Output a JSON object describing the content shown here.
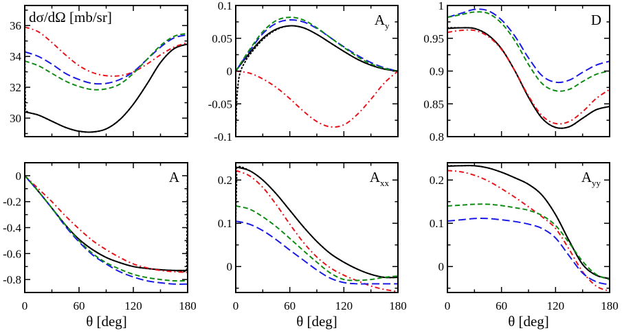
{
  "figure": {
    "x_axis_title": "θ  [deg]",
    "line_styles": {
      "solid_black": {
        "color": "#000000",
        "dash": "",
        "width": 2
      },
      "dotted_black": {
        "color": "#000000",
        "dash": "1.5,3.5",
        "width": 2
      },
      "dashdot_red": {
        "color": "#e8141a",
        "dash": "7,4,2,4",
        "width": 2
      },
      "longdash_blue": {
        "color": "#1a1ae6",
        "dash": "11,5",
        "width": 2
      },
      "shortdash_green": {
        "color": "#0f8a12",
        "dash": "7,4",
        "width": 2
      }
    }
  },
  "chart_data": [
    {
      "type": "line",
      "title": "dσ/dΩ  [mb/sr]",
      "label_main": "dσ/dΩ  [mb/sr]",
      "label_sub": "",
      "label_pos": "top-left",
      "xlabel": "",
      "ylabel": "dσ/dΩ [mb/sr]",
      "xlim": [
        0,
        180
      ],
      "ylim": [
        28.8,
        37.3
      ],
      "xticks": [
        0,
        60,
        120,
        180
      ],
      "xminor": [
        30,
        90,
        150
      ],
      "show_xtick_labels": false,
      "yticks": [
        30,
        32,
        34,
        36
      ],
      "ytick_labels": [
        "30",
        "32",
        "34",
        "36"
      ],
      "yminor": [
        29,
        31,
        33,
        35,
        37
      ],
      "x": [
        0,
        15,
        30,
        45,
        60,
        75,
        90,
        105,
        120,
        135,
        150,
        165,
        180
      ],
      "series": [
        {
          "name": "solid",
          "style": "solid_black",
          "values": [
            30.4,
            30.2,
            29.8,
            29.4,
            29.15,
            29.1,
            29.3,
            29.9,
            30.9,
            32.2,
            33.6,
            34.5,
            34.8
          ]
        },
        {
          "name": "dotted",
          "style": "dotted_black",
          "x": [
            0,
            0.3,
            0.8,
            2,
            15,
            30,
            45,
            60,
            75,
            90,
            105,
            120,
            135,
            150,
            165,
            180
          ],
          "values": [
            37.3,
            33,
            31,
            30.45,
            30.2,
            29.8,
            29.4,
            29.15,
            29.1,
            29.3,
            29.9,
            30.9,
            32.2,
            33.6,
            34.5,
            34.8
          ]
        },
        {
          "name": "dash-dot",
          "style": "dashdot_red",
          "values": [
            35.9,
            35.6,
            34.9,
            34.1,
            33.4,
            32.95,
            32.75,
            32.75,
            33.0,
            33.5,
            34.1,
            34.6,
            34.9
          ]
        },
        {
          "name": "long-dash",
          "style": "longdash_blue",
          "values": [
            34.3,
            34.0,
            33.5,
            32.9,
            32.5,
            32.25,
            32.25,
            32.5,
            33.0,
            33.8,
            34.6,
            35.2,
            35.4
          ]
        },
        {
          "name": "short-dash",
          "style": "shortdash_green",
          "values": [
            33.7,
            33.4,
            32.9,
            32.4,
            32.05,
            31.85,
            31.9,
            32.2,
            32.9,
            33.8,
            34.7,
            35.3,
            35.5
          ]
        }
      ]
    },
    {
      "type": "line",
      "title": "A_y",
      "label_main": "A",
      "label_sub": "y",
      "label_pos": "top-right",
      "xlabel": "",
      "ylabel": "A_y",
      "xlim": [
        0,
        180
      ],
      "ylim": [
        -0.1,
        0.1
      ],
      "xticks": [
        0,
        60,
        120,
        180
      ],
      "xminor": [
        30,
        90,
        150
      ],
      "show_xtick_labels": false,
      "yticks": [
        -0.1,
        -0.05,
        0,
        0.05,
        0.1
      ],
      "ytick_labels": [
        "-0.1",
        "-0.05",
        "0",
        "0.05",
        "0.1"
      ],
      "yminor": [
        -0.075,
        -0.025,
        0.025,
        0.075
      ],
      "x": [
        0,
        15,
        30,
        45,
        60,
        75,
        90,
        105,
        120,
        135,
        150,
        165,
        180
      ],
      "series": [
        {
          "name": "solid",
          "style": "solid_black",
          "values": [
            0,
            0.027,
            0.05,
            0.064,
            0.069,
            0.066,
            0.056,
            0.043,
            0.03,
            0.018,
            0.009,
            0.003,
            0
          ]
        },
        {
          "name": "dotted",
          "style": "dotted_black",
          "x": [
            0,
            1,
            3,
            6,
            10,
            15,
            30,
            45,
            60,
            75,
            90,
            105,
            120,
            135,
            150,
            165,
            180
          ],
          "values": [
            -0.1,
            -0.05,
            -0.015,
            0.002,
            0.013,
            0.024,
            0.048,
            0.063,
            0.069,
            0.066,
            0.056,
            0.043,
            0.03,
            0.018,
            0.009,
            0.003,
            0
          ]
        },
        {
          "name": "dash-dot",
          "style": "dashdot_red",
          "values": [
            0,
            -0.003,
            -0.012,
            -0.025,
            -0.042,
            -0.061,
            -0.077,
            -0.085,
            -0.082,
            -0.066,
            -0.043,
            -0.018,
            0
          ]
        },
        {
          "name": "long-dash",
          "style": "longdash_blue",
          "values": [
            0,
            0.03,
            0.057,
            0.073,
            0.078,
            0.075,
            0.065,
            0.051,
            0.037,
            0.024,
            0.013,
            0.005,
            0
          ]
        },
        {
          "name": "short-dash",
          "style": "shortdash_green",
          "values": [
            0,
            0.032,
            0.06,
            0.077,
            0.082,
            0.078,
            0.066,
            0.051,
            0.036,
            0.022,
            0.011,
            0.004,
            0
          ]
        }
      ]
    },
    {
      "type": "line",
      "title": "D",
      "label_main": "D",
      "label_sub": "",
      "label_pos": "top-right",
      "xlabel": "",
      "ylabel": "D",
      "xlim": [
        0,
        180
      ],
      "ylim": [
        0.8,
        1.0
      ],
      "xticks": [
        0,
        60,
        120,
        180
      ],
      "xminor": [
        30,
        90,
        150
      ],
      "show_xtick_labels": false,
      "yticks": [
        0.8,
        0.85,
        0.9,
        0.95,
        1.0
      ],
      "ytick_labels": [
        "0.8",
        "0.85",
        "0.9",
        "0.95",
        "1"
      ],
      "yminor": [
        0.825,
        0.875,
        0.925,
        0.975
      ],
      "x": [
        0,
        15,
        30,
        45,
        60,
        75,
        90,
        105,
        120,
        135,
        150,
        165,
        180
      ],
      "series": [
        {
          "name": "solid",
          "style": "solid_black",
          "values": [
            0.965,
            0.966,
            0.965,
            0.955,
            0.934,
            0.9,
            0.86,
            0.828,
            0.814,
            0.815,
            0.828,
            0.841,
            0.846
          ]
        },
        {
          "name": "dotted",
          "style": "dotted_black",
          "values": [
            0.966,
            0.966,
            0.965,
            0.955,
            0.934,
            0.9,
            0.86,
            0.828,
            0.814,
            0.815,
            0.828,
            0.841,
            0.846
          ]
        },
        {
          "name": "dash-dot",
          "style": "dashdot_red",
          "values": [
            0.959,
            0.962,
            0.962,
            0.953,
            0.933,
            0.9,
            0.862,
            0.832,
            0.82,
            0.823,
            0.838,
            0.858,
            0.872
          ]
        },
        {
          "name": "long-dash",
          "style": "longdash_blue",
          "values": [
            0.982,
            0.988,
            0.994,
            0.992,
            0.978,
            0.953,
            0.92,
            0.893,
            0.883,
            0.886,
            0.898,
            0.909,
            0.915
          ]
        },
        {
          "name": "short-dash",
          "style": "shortdash_green",
          "values": [
            0.982,
            0.986,
            0.99,
            0.988,
            0.973,
            0.946,
            0.91,
            0.881,
            0.87,
            0.872,
            0.884,
            0.895,
            0.9
          ]
        }
      ]
    },
    {
      "type": "line",
      "title": "A",
      "label_main": "A",
      "label_sub": "",
      "label_pos": "top-right",
      "xlabel": "θ  [deg]",
      "ylabel": "A",
      "xlim": [
        0,
        180
      ],
      "ylim": [
        -0.9,
        0.1
      ],
      "xticks": [
        0,
        60,
        120,
        180
      ],
      "xtick_labels": [
        "0",
        "60",
        "120",
        "180"
      ],
      "xminor": [
        30,
        90,
        150
      ],
      "show_xtick_labels": true,
      "yticks": [
        -0.8,
        -0.6,
        -0.4,
        -0.2,
        0
      ],
      "ytick_labels": [
        "-0.8",
        "-0.6",
        "-0.4",
        "-0.2",
        "0"
      ],
      "yminor": [
        -0.9,
        -0.7,
        -0.5,
        -0.3,
        -0.1,
        0.1
      ],
      "x": [
        0,
        15,
        30,
        45,
        60,
        75,
        90,
        105,
        120,
        135,
        150,
        165,
        180
      ],
      "series": [
        {
          "name": "solid",
          "style": "solid_black",
          "values": [
            0,
            -0.12,
            -0.25,
            -0.38,
            -0.49,
            -0.57,
            -0.63,
            -0.67,
            -0.7,
            -0.715,
            -0.725,
            -0.73,
            -0.73
          ]
        },
        {
          "name": "dotted",
          "style": "dotted_black",
          "x": [
            0,
            15,
            30,
            45,
            60,
            75,
            90,
            105,
            120,
            135,
            150,
            165,
            178,
            179,
            180
          ],
          "values": [
            0,
            -0.12,
            -0.25,
            -0.38,
            -0.49,
            -0.57,
            -0.63,
            -0.67,
            -0.7,
            -0.715,
            -0.725,
            -0.73,
            -0.73,
            -0.6,
            0.1
          ]
        },
        {
          "name": "dash-dot",
          "style": "dashdot_red",
          "values": [
            0,
            -0.1,
            -0.2,
            -0.31,
            -0.41,
            -0.5,
            -0.57,
            -0.63,
            -0.68,
            -0.71,
            -0.73,
            -0.74,
            -0.745
          ]
        },
        {
          "name": "long-dash",
          "style": "longdash_blue",
          "values": [
            0,
            -0.12,
            -0.25,
            -0.39,
            -0.51,
            -0.61,
            -0.68,
            -0.74,
            -0.78,
            -0.81,
            -0.825,
            -0.835,
            -0.835
          ]
        },
        {
          "name": "short-dash",
          "style": "shortdash_green",
          "values": [
            0,
            -0.12,
            -0.25,
            -0.38,
            -0.5,
            -0.6,
            -0.67,
            -0.72,
            -0.76,
            -0.785,
            -0.8,
            -0.81,
            -0.81
          ]
        }
      ]
    },
    {
      "type": "line",
      "title": "A_xx",
      "label_main": "A",
      "label_sub": "xx",
      "label_pos": "top-right",
      "xlabel": "θ  [deg]",
      "ylabel": "A_xx",
      "xlim": [
        0,
        180
      ],
      "ylim": [
        -0.06,
        0.24
      ],
      "xticks": [
        0,
        60,
        120,
        180
      ],
      "xtick_labels": [
        "0",
        "60",
        "120",
        "180"
      ],
      "xminor": [
        30,
        90,
        150
      ],
      "show_xtick_labels": true,
      "yticks": [
        0,
        0.1,
        0.2
      ],
      "ytick_labels": [
        "0",
        "0.1",
        "0.2"
      ],
      "yminor": [
        -0.05,
        0.05,
        0.15
      ],
      "x": [
        0,
        15,
        30,
        45,
        60,
        75,
        90,
        105,
        120,
        135,
        150,
        165,
        180
      ],
      "series": [
        {
          "name": "solid",
          "style": "solid_black",
          "values": [
            0.23,
            0.222,
            0.2,
            0.168,
            0.13,
            0.092,
            0.058,
            0.03,
            0.01,
            -0.006,
            -0.018,
            -0.025,
            -0.025
          ]
        },
        {
          "name": "dotted",
          "style": "dotted_black",
          "x": [
            0,
            1,
            2,
            15,
            30,
            45,
            60,
            75,
            90,
            105,
            120,
            135,
            150,
            165,
            180
          ],
          "values": [
            0.1,
            0.2,
            0.23,
            0.222,
            0.2,
            0.168,
            0.13,
            0.092,
            0.058,
            0.03,
            0.01,
            -0.006,
            -0.018,
            -0.025,
            -0.025
          ]
        },
        {
          "name": "dash-dot",
          "style": "dashdot_red",
          "values": [
            0.222,
            0.21,
            0.183,
            0.143,
            0.098,
            0.056,
            0.022,
            -0.003,
            -0.02,
            -0.033,
            -0.045,
            -0.053,
            -0.058
          ]
        },
        {
          "name": "long-dash",
          "style": "longdash_blue",
          "values": [
            0.105,
            0.098,
            0.083,
            0.062,
            0.038,
            0.015,
            -0.008,
            -0.027,
            -0.037,
            -0.04,
            -0.04,
            -0.04,
            -0.04
          ]
        },
        {
          "name": "short-dash",
          "style": "shortdash_green",
          "values": [
            0.14,
            0.133,
            0.115,
            0.092,
            0.065,
            0.037,
            0.01,
            -0.015,
            -0.03,
            -0.032,
            -0.03,
            -0.025,
            -0.022
          ]
        }
      ]
    },
    {
      "type": "line",
      "title": "A_yy",
      "label_main": "A",
      "label_sub": "yy",
      "label_pos": "top-right",
      "xlabel": "θ  [deg]",
      "ylabel": "A_yy",
      "xlim": [
        0,
        180
      ],
      "ylim": [
        -0.06,
        0.24
      ],
      "xticks": [
        0,
        60,
        120,
        180
      ],
      "xtick_labels": [
        "0",
        "60",
        "120",
        "180"
      ],
      "xminor": [
        30,
        90,
        150
      ],
      "show_xtick_labels": true,
      "yticks": [
        0,
        0.1,
        0.2
      ],
      "ytick_labels": [
        "0",
        "0.1",
        "0.2"
      ],
      "yminor": [
        -0.05,
        0.05,
        0.15
      ],
      "x": [
        0,
        15,
        30,
        45,
        60,
        75,
        90,
        105,
        120,
        135,
        150,
        165,
        180
      ],
      "series": [
        {
          "name": "solid",
          "style": "solid_black",
          "values": [
            0.232,
            0.233,
            0.233,
            0.228,
            0.218,
            0.205,
            0.19,
            0.165,
            0.12,
            0.06,
            0.005,
            -0.02,
            -0.028
          ]
        },
        {
          "name": "dotted",
          "style": "dotted_black",
          "values": [
            0.233,
            0.233,
            0.233,
            0.228,
            0.218,
            0.205,
            0.19,
            0.165,
            0.12,
            0.06,
            0.005,
            -0.02,
            -0.028
          ]
        },
        {
          "name": "dash-dot",
          "style": "dashdot_red",
          "values": [
            0.222,
            0.219,
            0.211,
            0.198,
            0.18,
            0.16,
            0.138,
            0.115,
            0.088,
            0.04,
            -0.012,
            -0.045,
            -0.057
          ]
        },
        {
          "name": "long-dash",
          "style": "longdash_blue",
          "values": [
            0.105,
            0.108,
            0.111,
            0.111,
            0.108,
            0.104,
            0.098,
            0.088,
            0.066,
            0.025,
            -0.015,
            -0.035,
            -0.042
          ]
        },
        {
          "name": "short-dash",
          "style": "shortdash_green",
          "values": [
            0.14,
            0.142,
            0.144,
            0.144,
            0.141,
            0.136,
            0.13,
            0.118,
            0.095,
            0.055,
            0.012,
            -0.018,
            -0.03
          ]
        }
      ]
    }
  ]
}
